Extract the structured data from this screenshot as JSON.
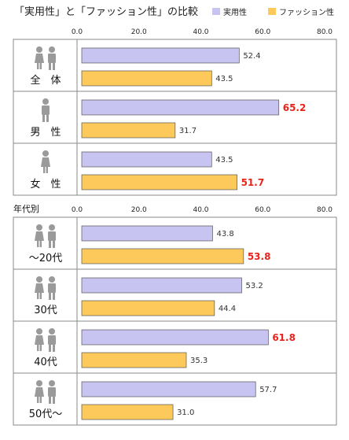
{
  "title": "「実用性」と「ファッション性」の比較",
  "colors": {
    "practical": "#c8c4f2",
    "fashion": "#fcc95a",
    "highlight": "#e8231a",
    "divider": "#8a8a8a",
    "icon": "#9a9a9a"
  },
  "chart_data": {
    "type": "bar",
    "orientation": "horizontal",
    "title": "「実用性」と「ファッション性」の比較",
    "legend": {
      "placement": "top-right",
      "entries": [
        "実用性",
        "ファッション性"
      ]
    },
    "xlim": [
      0,
      80
    ],
    "ticks": [
      "0.0",
      "20.0",
      "40.0",
      "60.0",
      "80.0"
    ],
    "series": [
      {
        "name": "実用性",
        "color": "#c8c4f2"
      },
      {
        "name": "ファッション性",
        "color": "#fcc95a"
      }
    ],
    "panels": [
      {
        "heading": "",
        "groups": [
          {
            "label": "全　体",
            "icon": "couple-icon",
            "values": [
              52.4,
              43.5
            ],
            "labels": [
              "52.4",
              "43.5"
            ],
            "highlight": [
              false,
              false
            ]
          },
          {
            "label": "男　性",
            "icon": "male-icon",
            "values": [
              65.2,
              31.7
            ],
            "labels": [
              "65.2",
              "31.7"
            ],
            "highlight": [
              true,
              false
            ]
          },
          {
            "label": "女　性",
            "icon": "female-icon",
            "values": [
              43.5,
              51.7
            ],
            "labels": [
              "43.5",
              "51.7"
            ],
            "highlight": [
              false,
              true
            ]
          }
        ]
      },
      {
        "heading": "年代別",
        "groups": [
          {
            "label": "〜20代",
            "icon": "couple-icon",
            "values": [
              43.8,
              53.8
            ],
            "labels": [
              "43.8",
              "53.8"
            ],
            "highlight": [
              false,
              true
            ]
          },
          {
            "label": "30代",
            "icon": "couple-icon",
            "values": [
              53.2,
              44.4
            ],
            "labels": [
              "53.2",
              "44.4"
            ],
            "highlight": [
              false,
              false
            ]
          },
          {
            "label": "40代",
            "icon": "couple-icon",
            "values": [
              61.8,
              35.3
            ],
            "labels": [
              "61.8",
              "35.3"
            ],
            "highlight": [
              true,
              false
            ]
          },
          {
            "label": "50代〜",
            "icon": "couple-icon",
            "values": [
              57.7,
              31.0
            ],
            "labels": [
              "57.7",
              "31.0"
            ],
            "highlight": [
              false,
              false
            ]
          }
        ]
      }
    ]
  }
}
